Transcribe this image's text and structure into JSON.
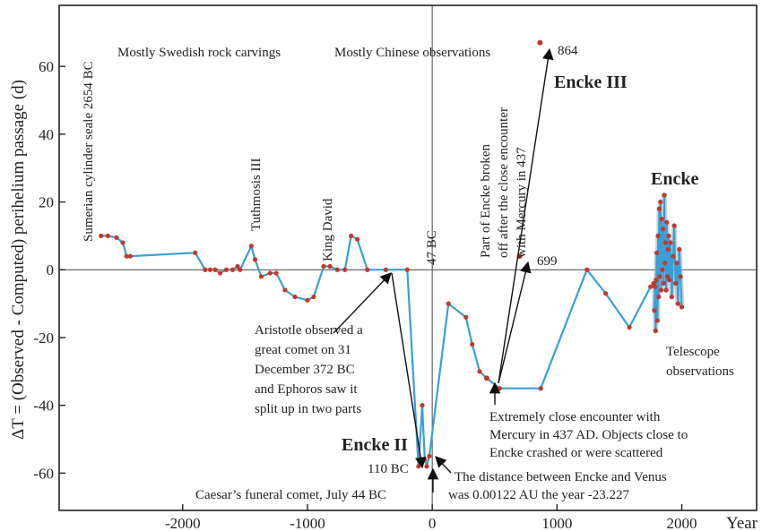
{
  "chart_data": {
    "type": "line",
    "title": "",
    "xlabel": "Year",
    "ylabel": "ΔT = (Observed - Computed) perihelium passage (d)",
    "xlim": [
      -2990,
      2600
    ],
    "ylim": [
      -71,
      78
    ],
    "grid": false,
    "xticks": [
      {
        "value": -2000,
        "label": "-2000"
      },
      {
        "value": -1000,
        "label": "-1000"
      },
      {
        "value": 0,
        "label": "0"
      },
      {
        "value": 1000,
        "label": "1000"
      },
      {
        "value": 2000,
        "label": "2000"
      }
    ],
    "yticks": [
      {
        "value": -60,
        "label": "-60"
      },
      {
        "value": -40,
        "label": "-40"
      },
      {
        "value": -20,
        "label": "-20"
      },
      {
        "value": 0,
        "label": "0"
      },
      {
        "value": 20,
        "label": "20"
      },
      {
        "value": 40,
        "label": "40"
      },
      {
        "value": 60,
        "label": "60"
      }
    ],
    "colors": {
      "line": "#3a9fd6",
      "marker": "#c0392b",
      "axis": "#222222",
      "ref": "#333333"
    },
    "series": [
      {
        "name": "",
        "x": [
          -2654,
          -2600,
          -2530,
          -2480,
          -2450,
          -2420,
          -1900,
          -1820,
          -1780,
          -1740,
          -1700,
          -1650,
          -1600,
          -1560,
          -1540,
          -1450,
          -1420,
          -1370,
          -1300,
          -1250,
          -1180,
          -1100,
          -1000,
          -950,
          -870,
          -820,
          -760,
          -700,
          -650,
          -600,
          -520,
          -372,
          -200,
          -110,
          -80,
          -60,
          -44,
          -23,
          130,
          270,
          320,
          380,
          437,
          540,
          870,
          1240,
          1390,
          1580,
          1750,
          1775
        ],
        "y": [
          10,
          10,
          9.5,
          8,
          4,
          4,
          5,
          0,
          0,
          0,
          -1,
          0,
          0,
          1,
          0,
          7,
          3,
          -2,
          -1,
          -1,
          -6,
          -8,
          -9,
          -8,
          1,
          1,
          0,
          0,
          10,
          9,
          0,
          0,
          0,
          -58,
          -40,
          -56,
          -58,
          -55,
          -10,
          -14,
          -22,
          -30,
          -32,
          -35,
          -35,
          0,
          -7,
          -17,
          -5,
          -4
        ],
        "markers": true
      },
      {
        "name": "",
        "x": [
          1780,
          1785,
          1790,
          1795,
          1800,
          1805,
          1810,
          1815,
          1820,
          1825,
          1830,
          1835,
          1840,
          1845,
          1850,
          1855,
          1860,
          1865,
          1870,
          1875,
          1880,
          1885,
          1890,
          1895,
          1900,
          1910,
          1920,
          1930,
          1940,
          1950,
          1960,
          1970,
          1980,
          1990,
          2000
        ],
        "y": [
          -12,
          -5,
          -18,
          -3,
          5,
          -15,
          10,
          -8,
          18,
          -2,
          20,
          -6,
          15,
          0,
          12,
          -4,
          22,
          2,
          8,
          -6,
          14,
          -2,
          6,
          10,
          -3,
          8,
          -8,
          4,
          13,
          -4,
          2,
          -10,
          6,
          -2,
          -11
        ],
        "markers": true,
        "shade": true
      }
    ],
    "branches": [
      {
        "x": [
          437,
          700,
          864
        ],
        "y": [
          -32,
          4,
          67
        ]
      }
    ],
    "point_labels": [
      {
        "x": 864,
        "y": 67,
        "text": "864"
      },
      {
        "x": 699,
        "y": 4,
        "text": "699"
      },
      {
        "x": -110,
        "y": -58,
        "text": "110 BC"
      }
    ],
    "annotations": {
      "rock_carvings": "Mostly Swedish rock carvings",
      "chinese": "Mostly Chinese observations",
      "encke3": "Encke III",
      "encke": "Encke",
      "encke2": "Encke II",
      "sumerian": "Sumerian cylinder seale 2654 BC",
      "tuthmosis": "Tuthmosis III",
      "king_david": "King David",
      "bc47": "47 BC",
      "part_broken": [
        "Part of Encke  broken",
        "off after the close encounter",
        "with Mercury in 437"
      ],
      "aristotle": [
        "Aristotle observed a",
        "great comet on 31",
        "December 372 BC",
        "and Ephoros saw it",
        "split up in two parts"
      ],
      "mercury": [
        "Extremely close encounter with",
        "Mercury in 437 AD. Objects close to",
        "Encke crashed or were scattered"
      ],
      "venus": [
        "The distance between Encke and Venus",
        "was 0.00122 AU the year -23.227"
      ],
      "caesar": "Caesar’s funeral comet, July 44 BC",
      "telescope": [
        "Telescope",
        "observations"
      ]
    }
  }
}
